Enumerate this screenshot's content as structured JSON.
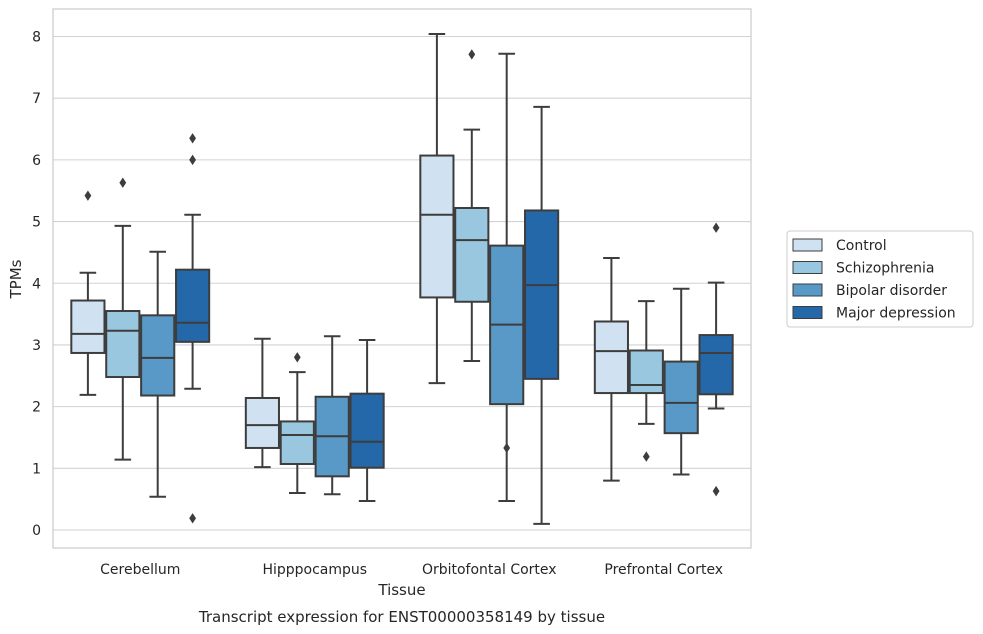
{
  "chart_data": {
    "type": "boxplot",
    "caption": "Transcript expression for ENST00000358149 by tissue",
    "xlabel": "Tissue",
    "ylabel": "TPMs",
    "ylim": [
      -0.1,
      8.45
    ],
    "yticks": [
      0,
      1,
      2,
      3,
      4,
      5,
      6,
      7,
      8
    ],
    "grid": true,
    "legend_position": "right",
    "categories": [
      "Cerebellum",
      "Hipppocampus",
      "Orbitofontal Cortex",
      "Prefrontal Cortex"
    ],
    "series": [
      {
        "name": "Control",
        "color": "#d0e1f1",
        "boxes": [
          {
            "whisker_low": 2.19,
            "q1": 2.87,
            "median": 3.18,
            "q3": 3.72,
            "whisker_high": 4.17,
            "outliers": [
              5.42
            ]
          },
          {
            "whisker_low": 1.02,
            "q1": 1.33,
            "median": 1.7,
            "q3": 2.14,
            "whisker_high": 3.1,
            "outliers": []
          },
          {
            "whisker_low": 2.38,
            "q1": 3.77,
            "median": 5.11,
            "q3": 6.07,
            "whisker_high": 8.04,
            "outliers": []
          },
          {
            "whisker_low": 0.8,
            "q1": 2.22,
            "median": 2.9,
            "q3": 3.38,
            "whisker_high": 4.41,
            "outliers": []
          }
        ]
      },
      {
        "name": "Schizophrenia",
        "color": "#9ac7e0",
        "boxes": [
          {
            "whisker_low": 1.14,
            "q1": 2.48,
            "median": 3.23,
            "q3": 3.55,
            "whisker_high": 4.93,
            "outliers": [
              5.63
            ]
          },
          {
            "whisker_low": 0.6,
            "q1": 1.07,
            "median": 1.54,
            "q3": 1.76,
            "whisker_high": 2.56,
            "outliers": [
              2.8
            ]
          },
          {
            "whisker_low": 2.74,
            "q1": 3.7,
            "median": 4.7,
            "q3": 5.22,
            "whisker_high": 6.49,
            "outliers": [
              7.71
            ]
          },
          {
            "whisker_low": 1.72,
            "q1": 2.22,
            "median": 2.35,
            "q3": 2.91,
            "whisker_high": 3.71,
            "outliers": [
              1.19
            ]
          }
        ]
      },
      {
        "name": "Bipolar disorder",
        "color": "#5899c7",
        "boxes": [
          {
            "whisker_low": 0.54,
            "q1": 2.18,
            "median": 2.79,
            "q3": 3.48,
            "whisker_high": 4.51,
            "outliers": []
          },
          {
            "whisker_low": 0.58,
            "q1": 0.87,
            "median": 1.52,
            "q3": 2.16,
            "whisker_high": 3.14,
            "outliers": []
          },
          {
            "whisker_low": 0.47,
            "q1": 2.04,
            "median": 3.33,
            "q3": 4.61,
            "whisker_high": 7.72,
            "outliers": [
              1.33
            ]
          },
          {
            "whisker_low": 0.9,
            "q1": 1.57,
            "median": 2.06,
            "q3": 2.73,
            "whisker_high": 3.91,
            "outliers": []
          }
        ]
      },
      {
        "name": "Major depression",
        "color": "#2568aa",
        "boxes": [
          {
            "whisker_low": 2.29,
            "q1": 3.05,
            "median": 3.36,
            "q3": 4.22,
            "whisker_high": 5.11,
            "outliers": [
              6.0,
              6.35,
              0.19
            ]
          },
          {
            "whisker_low": 0.47,
            "q1": 1.01,
            "median": 1.43,
            "q3": 2.21,
            "whisker_high": 3.08,
            "outliers": []
          },
          {
            "whisker_low": 0.1,
            "q1": 2.45,
            "median": 3.97,
            "q3": 5.18,
            "whisker_high": 6.86,
            "outliers": []
          },
          {
            "whisker_low": 1.97,
            "q1": 2.2,
            "median": 2.87,
            "q3": 3.16,
            "whisker_high": 4.01,
            "outliers": [
              4.9,
              0.63
            ]
          }
        ]
      }
    ]
  }
}
